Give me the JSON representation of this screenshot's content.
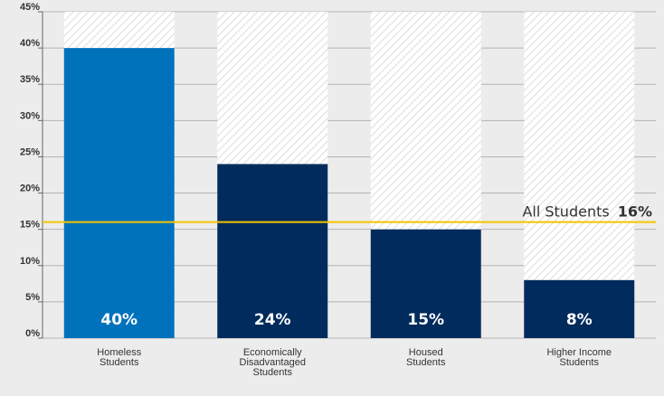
{
  "chart_data": {
    "type": "bar",
    "categories": [
      [
        "Homeless",
        "Students"
      ],
      [
        "Economically",
        "Disadvantaged",
        "Students"
      ],
      [
        "Housed",
        "Students"
      ],
      [
        "Higher Income",
        "Students"
      ]
    ],
    "values": [
      40,
      24,
      15,
      8
    ],
    "data_labels": [
      "40%",
      "24%",
      "15%",
      "8%"
    ],
    "bar_colors": [
      "#0072bc",
      "#002b5c",
      "#002b5c",
      "#002b5c"
    ],
    "ylim": [
      0,
      45
    ],
    "yticks": [
      0,
      5,
      10,
      15,
      20,
      25,
      30,
      35,
      40,
      45
    ],
    "ytick_labels": [
      "0%",
      "5%",
      "10%",
      "15%",
      "20%",
      "25%",
      "30%",
      "35%",
      "40%",
      "45%"
    ],
    "grid": true,
    "reference_line": {
      "label": "All Students",
      "value_label": "16%",
      "value": 16,
      "color": "#f5c400"
    }
  }
}
